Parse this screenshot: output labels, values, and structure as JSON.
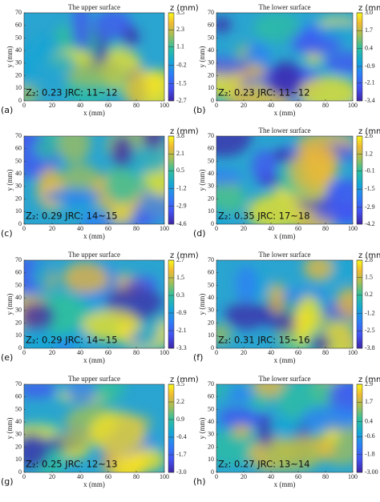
{
  "chart_data": [
    {
      "type": "heatmap",
      "title": "The upper surface",
      "panel_label": "(a)",
      "annotation": "Z₂: 0.23  JRC: 11~12",
      "xlabel": "x (mm)",
      "ylabel": "y (mm)",
      "colorbar_label": "z (mm)",
      "colormap": "parula",
      "xlim": [
        0,
        100
      ],
      "xticks": [
        0,
        20,
        40,
        60,
        80,
        100
      ],
      "ylim": [
        0,
        70
      ],
      "yticks": [
        0,
        10,
        20,
        30,
        40,
        50,
        60,
        70
      ],
      "zlim": [
        -2.7,
        3.5
      ],
      "zticks": [
        3.5,
        2.3,
        1.1,
        -0.2,
        -1.5,
        -2.7
      ]
    },
    {
      "type": "heatmap",
      "title": "The lower surface",
      "panel_label": "(b)",
      "annotation": "Z₂: 0.23  JRC: 11~12",
      "xlabel": "x (mm)",
      "ylabel": "y (mm)",
      "colorbar_label": "z (mm)",
      "colormap": "parula",
      "xlim": [
        0,
        100
      ],
      "xticks": [
        0,
        20,
        40,
        60,
        80,
        100
      ],
      "ylim": [
        0,
        70
      ],
      "yticks": [
        0,
        10,
        20,
        30,
        40,
        50,
        60,
        70
      ],
      "zlim": [
        -3.4,
        3
      ],
      "zticks": [
        {
          "value": 3,
          "label": "3.0"
        },
        1.7,
        0.4,
        -0.9,
        -2.1,
        -3.4
      ]
    },
    {
      "type": "heatmap",
      "panel_label": "(c)",
      "annotation": "Z₂: 0.29  JRC: 14~15",
      "xlabel": "x (mm)",
      "ylabel": "y (mm)",
      "colorbar_label": "z (mm)",
      "colormap": "parula",
      "xlim": [
        0,
        100
      ],
      "xticks": [
        0,
        20,
        40,
        60,
        80,
        100
      ],
      "ylim": [
        0,
        70
      ],
      "yticks": [
        0,
        10,
        20,
        30,
        40,
        50,
        60,
        70
      ],
      "zlim": [
        -4.6,
        3.8
      ],
      "zticks": [
        3.8,
        2.1,
        0.5,
        -1.2,
        -2.9,
        -4.6
      ]
    },
    {
      "type": "heatmap",
      "title": "The lower surface",
      "panel_label": "(d)",
      "annotation": "Z₂: 0.35  JRC: 17~18",
      "xlabel": "x (mm)",
      "ylabel": "y (mm)",
      "colorbar_label": "z (mm)",
      "colormap": "parula",
      "xlim": [
        0,
        100
      ],
      "xticks": [
        0,
        20,
        40,
        60,
        80,
        100
      ],
      "ylim": [
        0,
        70
      ],
      "yticks": [
        0,
        10,
        20,
        30,
        40,
        50,
        60,
        70
      ],
      "zlim": [
        -4.2,
        2.6
      ],
      "zticks": [
        2.6,
        1.2,
        -0.1,
        -1.5,
        -2.9,
        -4.2
      ]
    },
    {
      "type": "heatmap",
      "title": "The upper surface",
      "panel_label": "(e)",
      "annotation": "Z₂: 0.29  JRC: 14~15",
      "xlabel": "x (mm)",
      "ylabel": "y (mm)",
      "colorbar_label": "z (mm)",
      "colormap": "parula",
      "xlim": [
        0,
        100
      ],
      "xticks": [
        0,
        20,
        40,
        60,
        80,
        100
      ],
      "ylim": [
        0,
        70
      ],
      "yticks": [
        0,
        10,
        20,
        30,
        40,
        50,
        60,
        70
      ],
      "zlim": [
        -3.3,
        2.7
      ],
      "zticks": [
        2.7,
        1.5,
        0.3,
        -0.9,
        -2.1,
        -3.3
      ]
    },
    {
      "type": "heatmap",
      "title": "The lower surface",
      "panel_label": "(f)",
      "annotation": "Z₂: 0.31  JRC: 15~16",
      "xlabel": "x (mm)",
      "ylabel": "y (mm)",
      "colorbar_label": "z (mm)",
      "colormap": "parula",
      "xlim": [
        0,
        100
      ],
      "xticks": [
        0,
        20,
        40,
        60,
        80,
        100
      ],
      "ylim": [
        0,
        70
      ],
      "yticks": [
        0,
        10,
        20,
        30,
        40,
        50,
        60,
        70
      ],
      "zlim": [
        -3.8,
        2.8
      ],
      "zticks": [
        2.8,
        1.5,
        0.2,
        -1.2,
        -2.5,
        -3.8
      ]
    },
    {
      "type": "heatmap",
      "title": "The upper surface",
      "panel_label": "(g)",
      "annotation": "Z₂: 0.25  JRC: 12~13",
      "xlabel": "x (mm)",
      "ylabel": "y (mm)",
      "colorbar_label": "z (mm)",
      "colormap": "parula",
      "xlim": [
        0,
        100
      ],
      "xticks": [
        0,
        20,
        40,
        60,
        80,
        100
      ],
      "ylim": [
        0,
        70
      ],
      "yticks": [
        0,
        10,
        20,
        30,
        40,
        50,
        60,
        70
      ],
      "zlim": [
        -3,
        3.5
      ],
      "zticks": [
        3.5,
        2.2,
        0.9,
        -0.4,
        -1.7,
        {
          "value": -3,
          "label": "-3.0"
        }
      ]
    },
    {
      "type": "heatmap",
      "title": "The lower surface",
      "panel_label": "(h)",
      "annotation": "Z₂: 0.27  JRC: 13~14",
      "xlabel": "x (mm)",
      "ylabel": "y (mm)",
      "colorbar_label": "z (mm)",
      "colormap": "parula",
      "xlim": [
        0,
        100
      ],
      "xticks": [
        0,
        20,
        40,
        60,
        80,
        100
      ],
      "ylim": [
        0,
        70
      ],
      "yticks": [
        0,
        10,
        20,
        30,
        40,
        50,
        60,
        70
      ],
      "zlim": [
        -3,
        2.9
      ],
      "zticks": [
        2.9,
        1.7,
        0.4,
        -0.6,
        -1.8,
        {
          "value": -3,
          "label": "-3.00"
        }
      ]
    }
  ]
}
